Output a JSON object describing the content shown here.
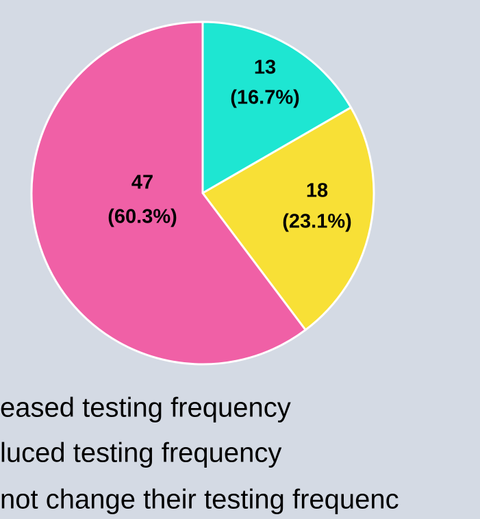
{
  "chart_data": {
    "type": "pie",
    "categories": [
      "eased testing frequency",
      "luced testing frequency",
      "not change their testing frequenc"
    ],
    "values": [
      13,
      18,
      47
    ],
    "percent_labels": [
      "(16.7%)",
      "(23.1%)",
      "(60.3%)"
    ],
    "colors": [
      "#1ee6d2",
      "#f8e036",
      "#f060a6"
    ]
  }
}
